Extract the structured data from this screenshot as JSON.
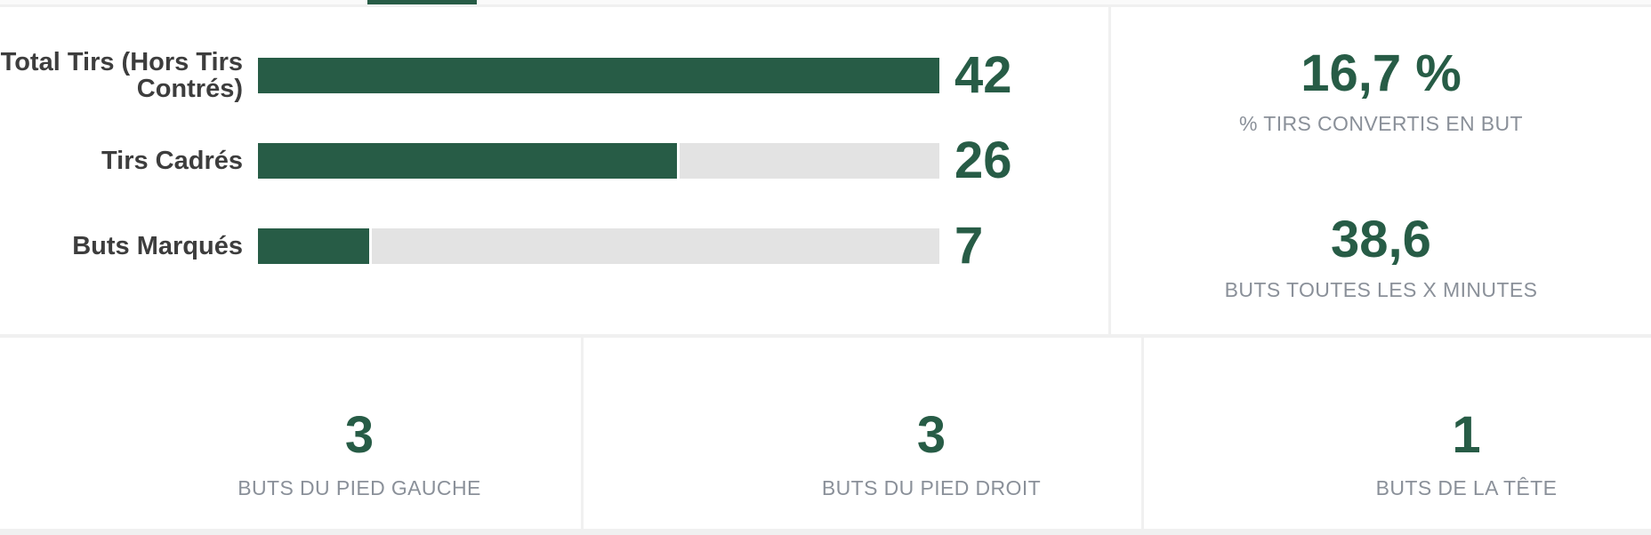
{
  "colors": {
    "accent_green": "#275c46",
    "bar_track_gray": "#e3e3e3",
    "panel_gap_gray": "#f0f0f0",
    "muted_label_gray": "#8a9099",
    "bar_label_gray": "#3d3d3d"
  },
  "chart_data": {
    "type": "bar",
    "orientation": "horizontal",
    "categories": [
      "Total Tirs (Hors Tirs Contrés)",
      "Tirs Cadrés",
      "Buts Marqués"
    ],
    "values": [
      42,
      26,
      7
    ],
    "value_labels": [
      "42",
      "26",
      "7"
    ],
    "xlim": [
      0,
      42
    ],
    "title": "",
    "xlabel": "",
    "ylabel": "",
    "legend": false,
    "gridlines": false,
    "bar_color": "#275c46",
    "track_color": "#e3e3e3"
  },
  "side_panel": {
    "stats": [
      {
        "value": "16,7 %",
        "label": "% TIRS CONVERTIS EN BUT"
      },
      {
        "value": "38,6",
        "label": "BUTS TOUTES LES X MINUTES"
      }
    ]
  },
  "bottom_cards": [
    {
      "value": "3",
      "label": "BUTS DU PIED GAUCHE"
    },
    {
      "value": "3",
      "label": "BUTS DU PIED DROIT"
    },
    {
      "value": "1",
      "label": "BUTS DE LA TÊTE"
    }
  ]
}
